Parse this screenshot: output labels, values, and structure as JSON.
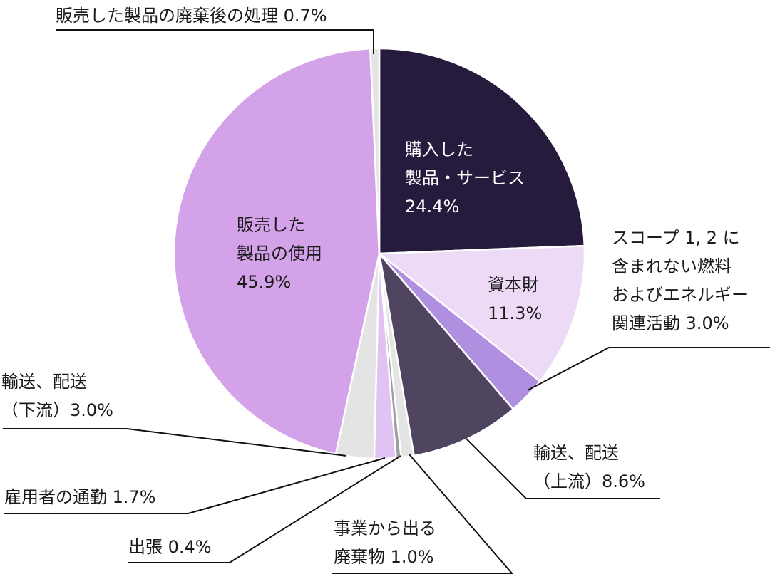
{
  "chart_data": {
    "type": "pie",
    "title": "",
    "start_angle_deg": 0,
    "direction": "clockwise",
    "slices": [
      {
        "label": "購入した製品・サービス",
        "value": 24.4,
        "color": "#261b3d"
      },
      {
        "label": "資本財",
        "value": 11.3,
        "color": "#ecdaf7"
      },
      {
        "label": "スコープ 1, 2 に含まれない燃料およびエネルギー関連活動",
        "value": 3.0,
        "color": "#b08fe0"
      },
      {
        "label": "輸送、配送（上流）",
        "value": 8.6,
        "color": "#4f4560"
      },
      {
        "label": "事業から出る廃棄物",
        "value": 1.0,
        "color": "#e4e4e4"
      },
      {
        "label": "出張",
        "value": 0.4,
        "color": "#9f9f9f"
      },
      {
        "label": "雇用者の通勤",
        "value": 1.7,
        "color": "#e1c3f3"
      },
      {
        "label": "輸送、配送（下流）",
        "value": 3.0,
        "color": "#e4e4e4"
      },
      {
        "label": "販売した製品の使用",
        "value": 45.9,
        "color": "#d4a2e8"
      },
      {
        "label": "販売した製品の廃棄後の処理",
        "value": 0.7,
        "color": "#e4e4e4"
      }
    ],
    "center": [
      532,
      356
    ],
    "radius": 288
  },
  "labels": {
    "purchased": {
      "line1": "購入した",
      "line2": "製品・サービス",
      "pct": "24.4%"
    },
    "capital": {
      "line1": "資本財",
      "pct": "11.3%"
    },
    "fuel": {
      "line1": "スコープ 1, 2 に",
      "line2": "含まれない燃料",
      "line3": "およびエネルギー",
      "line4": "関連活動 3.0%"
    },
    "upstream": {
      "line1": "輸送、配送",
      "line2": "（上流）8.6%"
    },
    "waste": {
      "line1": "事業から出る",
      "line2": "廃棄物 1.0%"
    },
    "travel": {
      "line1": "出張 0.4%"
    },
    "commute": {
      "line1": "雇用者の通勤 1.7%"
    },
    "downstream": {
      "line1": "輸送、配送",
      "line2": "（下流）3.0%"
    },
    "use_sold": {
      "line1": "販売した",
      "line2": "製品の使用",
      "pct": "45.9%"
    },
    "eol": {
      "line1": "販売した製品の廃棄後の処理 0.7%"
    }
  }
}
